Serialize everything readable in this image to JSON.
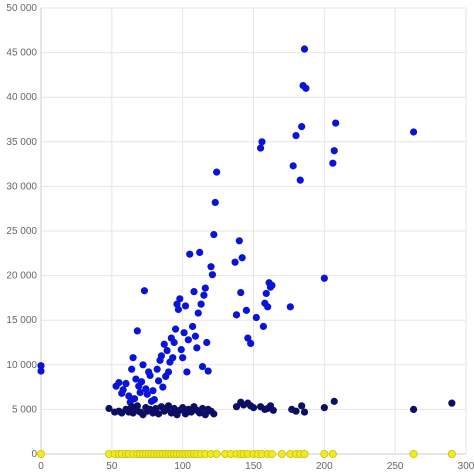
{
  "chart_data": {
    "type": "scatter",
    "title": "",
    "xlabel": "",
    "ylabel": "",
    "xlim": [
      0,
      300
    ],
    "ylim": [
      0,
      50000
    ],
    "grid": true,
    "legend": "none",
    "x_ticks": [
      {
        "value": 0,
        "label": "0"
      },
      {
        "value": 50,
        "label": "50"
      },
      {
        "value": 100,
        "label": "100"
      },
      {
        "value": 150,
        "label": "150"
      },
      {
        "value": 200,
        "label": "200"
      },
      {
        "value": 250,
        "label": "250"
      },
      {
        "value": 300,
        "label": "300"
      }
    ],
    "y_ticks": [
      {
        "value": 0,
        "label": "0"
      },
      {
        "value": 5000,
        "label": "5 000"
      },
      {
        "value": 10000,
        "label": "10 000"
      },
      {
        "value": 15000,
        "label": "15 000"
      },
      {
        "value": 20000,
        "label": "20 000"
      },
      {
        "value": 25000,
        "label": "25 000"
      },
      {
        "value": 30000,
        "label": "30 000"
      },
      {
        "value": 35000,
        "label": "35 000"
      },
      {
        "value": 40000,
        "label": "40 000"
      },
      {
        "value": 45000,
        "label": "45 000"
      },
      {
        "value": 50000,
        "label": "50 000"
      }
    ],
    "series": [
      {
        "color": "#0a14d8",
        "points": [
          [
            0,
            9900
          ],
          [
            0,
            9300
          ],
          [
            53,
            7600
          ],
          [
            55,
            8000
          ],
          [
            57,
            6800
          ],
          [
            58,
            7200
          ],
          [
            60,
            7900
          ],
          [
            62,
            6500
          ],
          [
            63,
            5800
          ],
          [
            64,
            9500
          ],
          [
            65,
            10800
          ],
          [
            66,
            6200
          ],
          [
            67,
            8400
          ],
          [
            68,
            13800
          ],
          [
            69,
            7600
          ],
          [
            70,
            6900
          ],
          [
            71,
            8100
          ],
          [
            72,
            10000
          ],
          [
            73,
            18300
          ],
          [
            74,
            7300
          ],
          [
            75,
            6700
          ],
          [
            76,
            9200
          ],
          [
            77,
            8800
          ],
          [
            78,
            5900
          ],
          [
            79,
            7100
          ],
          [
            80,
            6100
          ],
          [
            82,
            9500
          ],
          [
            83,
            8200
          ],
          [
            84,
            10500
          ],
          [
            85,
            11000
          ],
          [
            86,
            7500
          ],
          [
            87,
            12300
          ],
          [
            88,
            8700
          ],
          [
            89,
            11600
          ],
          [
            90,
            9200
          ],
          [
            91,
            10300
          ],
          [
            92,
            13000
          ],
          [
            93,
            10800
          ],
          [
            94,
            12500
          ],
          [
            95,
            14000
          ],
          [
            96,
            16800
          ],
          [
            97,
            16200
          ],
          [
            98,
            17400
          ],
          [
            99,
            11700
          ],
          [
            100,
            10800
          ],
          [
            101,
            13600
          ],
          [
            102,
            16600
          ],
          [
            103,
            9200
          ],
          [
            104,
            12800
          ],
          [
            105,
            22400
          ],
          [
            107,
            14300
          ],
          [
            108,
            18200
          ],
          [
            109,
            13200
          ],
          [
            110,
            11900
          ],
          [
            111,
            15800
          ],
          [
            112,
            22600
          ],
          [
            113,
            16800
          ],
          [
            114,
            9800
          ],
          [
            115,
            17800
          ],
          [
            116,
            18600
          ],
          [
            117,
            12500
          ],
          [
            118,
            9300
          ],
          [
            120,
            21000
          ],
          [
            121,
            20100
          ],
          [
            122,
            24600
          ],
          [
            123,
            28200
          ],
          [
            124,
            31600
          ],
          [
            137,
            21500
          ],
          [
            138,
            15600
          ],
          [
            140,
            23900
          ],
          [
            141,
            18100
          ],
          [
            142,
            22000
          ],
          [
            145,
            16100
          ],
          [
            146,
            13000
          ],
          [
            148,
            12400
          ],
          [
            152,
            15300
          ],
          [
            155,
            34300
          ],
          [
            156,
            35000
          ],
          [
            157,
            14300
          ],
          [
            158,
            16900
          ],
          [
            159,
            18000
          ],
          [
            160,
            16500
          ],
          [
            161,
            19200
          ],
          [
            162,
            18700
          ],
          [
            163,
            18900
          ],
          [
            176,
            16500
          ],
          [
            178,
            32300
          ],
          [
            180,
            35700
          ],
          [
            183,
            30700
          ],
          [
            184,
            36700
          ],
          [
            185,
            41300
          ],
          [
            186,
            45400
          ],
          [
            187,
            41000
          ],
          [
            200,
            19700
          ],
          [
            206,
            32600
          ],
          [
            207,
            34000
          ],
          [
            208,
            37100
          ],
          [
            263,
            36100
          ]
        ]
      },
      {
        "color": "#0c0e66",
        "points": [
          [
            48,
            5100
          ],
          [
            52,
            4700
          ],
          [
            55,
            4800
          ],
          [
            57,
            4600
          ],
          [
            60,
            5000
          ],
          [
            62,
            4700
          ],
          [
            64,
            5300
          ],
          [
            65,
            4600
          ],
          [
            67,
            4900
          ],
          [
            68,
            5400
          ],
          [
            70,
            4700
          ],
          [
            72,
            4400
          ],
          [
            74,
            5200
          ],
          [
            75,
            4800
          ],
          [
            77,
            5000
          ],
          [
            79,
            4600
          ],
          [
            81,
            5100
          ],
          [
            83,
            4500
          ],
          [
            85,
            5300
          ],
          [
            87,
            4800
          ],
          [
            89,
            5000
          ],
          [
            90,
            5400
          ],
          [
            92,
            4600
          ],
          [
            94,
            5100
          ],
          [
            96,
            4400
          ],
          [
            98,
            4900
          ],
          [
            100,
            5200
          ],
          [
            102,
            4500
          ],
          [
            104,
            5000
          ],
          [
            106,
            4700
          ],
          [
            108,
            5300
          ],
          [
            110,
            4900
          ],
          [
            112,
            4600
          ],
          [
            114,
            5100
          ],
          [
            116,
            4400
          ],
          [
            118,
            5000
          ],
          [
            120,
            4800
          ],
          [
            122,
            4500
          ],
          [
            138,
            5300
          ],
          [
            141,
            5800
          ],
          [
            143,
            5500
          ],
          [
            146,
            5700
          ],
          [
            148,
            5400
          ],
          [
            150,
            5200
          ],
          [
            155,
            5300
          ],
          [
            158,
            5000
          ],
          [
            160,
            5100
          ],
          [
            162,
            5400
          ],
          [
            164,
            4900
          ],
          [
            177,
            5000
          ],
          [
            180,
            4800
          ],
          [
            184,
            5400
          ],
          [
            186,
            4700
          ],
          [
            200,
            5200
          ],
          [
            207,
            5900
          ],
          [
            263,
            5000
          ],
          [
            290,
            5700
          ]
        ]
      },
      {
        "color": "#f2ea1a",
        "points": [
          [
            0,
            0
          ],
          [
            48,
            0
          ],
          [
            52,
            0
          ],
          [
            55,
            0
          ],
          [
            57,
            0
          ],
          [
            60,
            0
          ],
          [
            62,
            0
          ],
          [
            65,
            0
          ],
          [
            68,
            0
          ],
          [
            70,
            0
          ],
          [
            72,
            0
          ],
          [
            74,
            0
          ],
          [
            76,
            0
          ],
          [
            78,
            0
          ],
          [
            80,
            0
          ],
          [
            82,
            0
          ],
          [
            84,
            0
          ],
          [
            86,
            0
          ],
          [
            88,
            0
          ],
          [
            90,
            0
          ],
          [
            92,
            0
          ],
          [
            94,
            0
          ],
          [
            96,
            0
          ],
          [
            98,
            0
          ],
          [
            100,
            0
          ],
          [
            102,
            0
          ],
          [
            104,
            0
          ],
          [
            106,
            0
          ],
          [
            108,
            0
          ],
          [
            110,
            0
          ],
          [
            113,
            0
          ],
          [
            116,
            0
          ],
          [
            120,
            0
          ],
          [
            124,
            0
          ],
          [
            130,
            0
          ],
          [
            134,
            0
          ],
          [
            138,
            0
          ],
          [
            141,
            0
          ],
          [
            143,
            0
          ],
          [
            146,
            0
          ],
          [
            150,
            0
          ],
          [
            153,
            0
          ],
          [
            156,
            0
          ],
          [
            160,
            0
          ],
          [
            163,
            0
          ],
          [
            170,
            0
          ],
          [
            176,
            0
          ],
          [
            180,
            0
          ],
          [
            183,
            0
          ],
          [
            186,
            0
          ],
          [
            200,
            0
          ],
          [
            206,
            0
          ],
          [
            263,
            0
          ],
          [
            290,
            0
          ]
        ]
      }
    ]
  }
}
